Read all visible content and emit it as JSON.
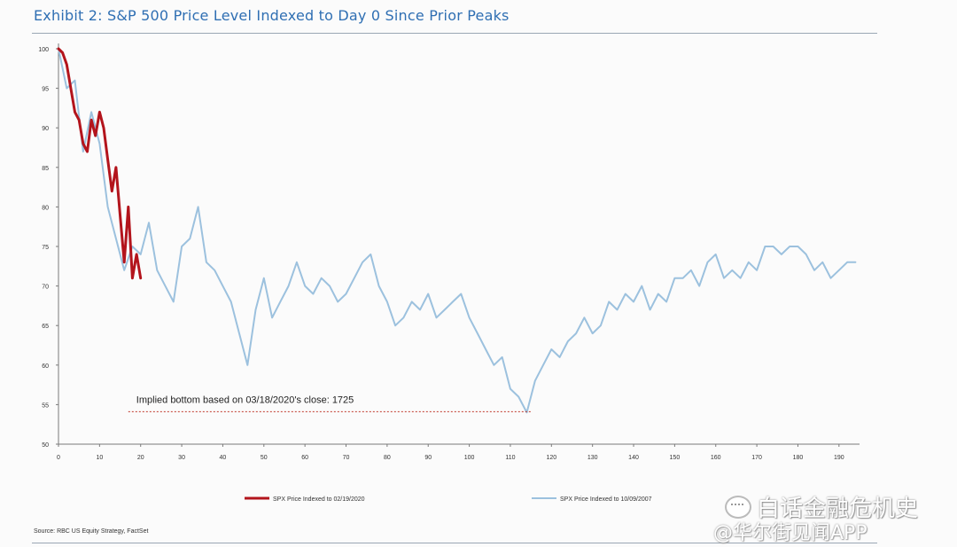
{
  "title": "Exhibit 2: S&P 500 Price Level Indexed to Day 0 Since Prior Peaks",
  "source": "Source: RBC US Equity Strategy, FactSet",
  "watermark": {
    "line1": "白话金融危机史",
    "line2": "@华尔街见闻APP"
  },
  "colors": {
    "series_2020": "#b3141c",
    "series_2008": "#9cc1de",
    "annotation_line": "#c0392b",
    "title": "#2f6fb3"
  },
  "chart_data": {
    "type": "line",
    "title": "Exhibit 2: S&P 500 Price Level Indexed to Day 0 Since Prior Peaks",
    "xlabel": "",
    "ylabel": "",
    "xlim": [
      0,
      195
    ],
    "ylim": [
      50,
      100
    ],
    "x_ticks": [
      0,
      10,
      20,
      30,
      40,
      50,
      60,
      70,
      80,
      90,
      100,
      110,
      120,
      130,
      140,
      150,
      160,
      170,
      180,
      190
    ],
    "y_ticks": [
      50,
      55,
      60,
      65,
      70,
      75,
      80,
      85,
      90,
      95,
      100
    ],
    "grid": false,
    "legend_position": "bottom",
    "series": [
      {
        "name": "SPX Price Indexed to 02/19/2020",
        "x": [
          0,
          1,
          2,
          3,
          4,
          5,
          6,
          7,
          8,
          9,
          10,
          11,
          12,
          13,
          14,
          15,
          16,
          17,
          18,
          19,
          20
        ],
        "values": [
          100,
          99.5,
          98,
          95,
          92,
          91,
          88,
          87,
          91,
          89,
          92,
          90,
          86,
          82,
          85,
          79,
          73,
          80,
          71,
          74,
          71
        ]
      },
      {
        "name": "SPX Price Indexed to 10/09/2007",
        "x": [
          0,
          2,
          4,
          6,
          8,
          10,
          12,
          14,
          16,
          18,
          20,
          22,
          24,
          26,
          28,
          30,
          32,
          34,
          36,
          38,
          40,
          42,
          44,
          46,
          48,
          50,
          52,
          54,
          56,
          58,
          60,
          62,
          64,
          66,
          68,
          70,
          72,
          74,
          76,
          78,
          80,
          82,
          84,
          86,
          88,
          90,
          92,
          94,
          96,
          98,
          100,
          102,
          104,
          106,
          108,
          110,
          112,
          114,
          116,
          118,
          120,
          122,
          124,
          126,
          128,
          130,
          132,
          134,
          136,
          138,
          140,
          142,
          144,
          146,
          148,
          150,
          152,
          154,
          156,
          158,
          160,
          162,
          164,
          166,
          168,
          170,
          172,
          174,
          176,
          178,
          180,
          182,
          184,
          186,
          188,
          190,
          192,
          194
        ],
        "values": [
          100,
          95,
          96,
          87,
          92,
          88,
          80,
          76,
          72,
          75,
          74,
          78,
          72,
          70,
          68,
          75,
          76,
          80,
          73,
          72,
          70,
          68,
          64,
          60,
          67,
          71,
          66,
          68,
          70,
          73,
          70,
          69,
          71,
          70,
          68,
          69,
          71,
          73,
          74,
          70,
          68,
          65,
          66,
          68,
          67,
          69,
          66,
          67,
          68,
          69,
          66,
          64,
          62,
          60,
          61,
          57,
          56,
          54,
          58,
          60,
          62,
          61,
          63,
          64,
          66,
          64,
          65,
          68,
          67,
          69,
          68,
          70,
          67,
          69,
          68,
          71,
          71,
          72,
          70,
          73,
          74,
          71,
          72,
          71,
          73,
          72,
          75,
          75,
          74,
          75,
          75,
          74,
          72,
          73,
          71,
          72,
          73,
          73
        ]
      }
    ],
    "annotations": [
      {
        "text": "Implied bottom based on 03/18/2020's close: 1725",
        "x_from": 17,
        "x_to": 115,
        "y": 54
      }
    ]
  }
}
